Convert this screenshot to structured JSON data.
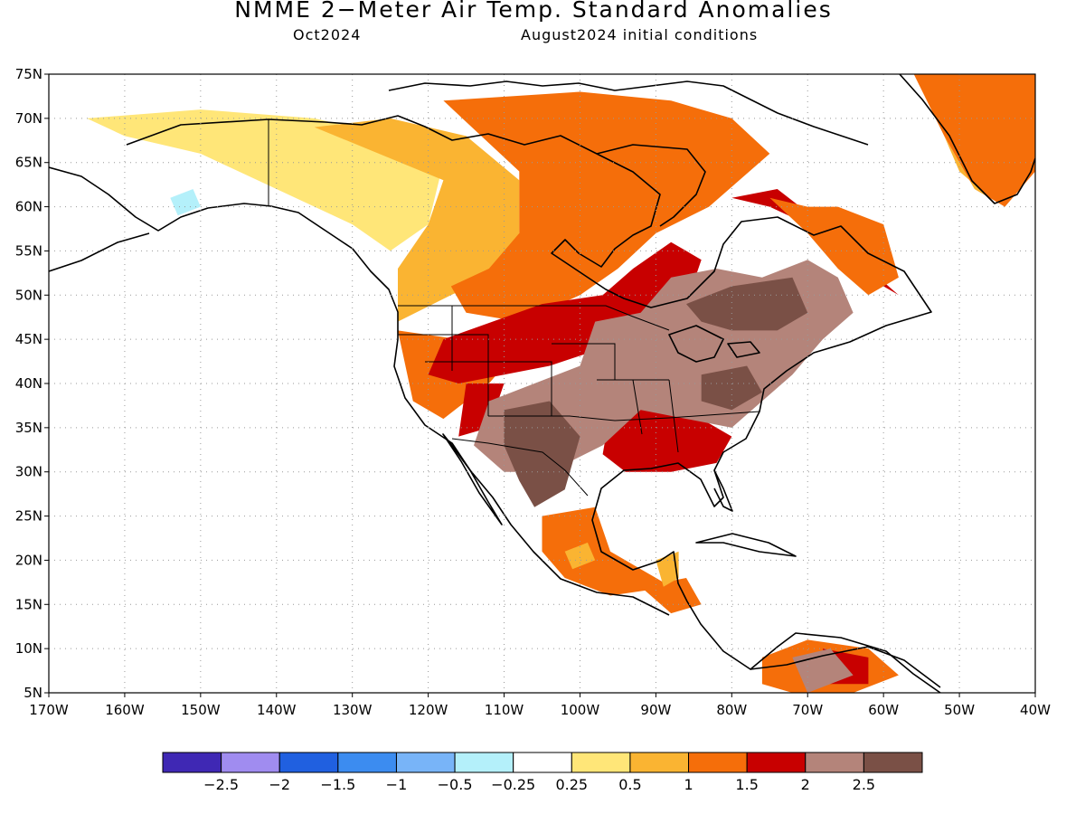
{
  "title": "NMME 2−Meter Air Temp. Standard Anomalies",
  "subtitle_left": "Oct2024",
  "subtitle_right": "August2024 initial conditions",
  "axes": {
    "lat_labels": [
      "75N",
      "70N",
      "65N",
      "60N",
      "55N",
      "50N",
      "45N",
      "40N",
      "35N",
      "30N",
      "25N",
      "20N",
      "15N",
      "10N",
      "5N"
    ],
    "lat_values": [
      75,
      70,
      65,
      60,
      55,
      50,
      45,
      40,
      35,
      30,
      25,
      20,
      15,
      10,
      5
    ],
    "lon_labels": [
      "170W",
      "160W",
      "150W",
      "140W",
      "130W",
      "120W",
      "110W",
      "100W",
      "90W",
      "80W",
      "70W",
      "60W",
      "50W",
      "40W"
    ],
    "lon_values": [
      -170,
      -160,
      -150,
      -140,
      -130,
      -120,
      -110,
      -100,
      -90,
      -80,
      -70,
      -60,
      -50,
      -40
    ],
    "lon_range": [
      -170,
      -40
    ],
    "lat_range": [
      5,
      75
    ],
    "grid": true
  },
  "colorbar": {
    "labels": [
      "−2.5",
      "−2",
      "−1.5",
      "−1",
      "−0.5",
      "−0.25",
      "0.25",
      "0.5",
      "1",
      "1.5",
      "2",
      "2.5"
    ],
    "colors": [
      "#3f28b4",
      "#a08cf0",
      "#2060e0",
      "#3c8cf0",
      "#78b4f8",
      "#b4f0fa",
      "#ffffff",
      "#ffe678",
      "#fab432",
      "#f56e0a",
      "#c80000",
      "#b4847a",
      "#7a5046"
    ]
  },
  "anomaly_regions": [
    {
      "level": "0.25",
      "color": "#ffe678",
      "polygon": [
        [
          -165,
          70
        ],
        [
          -150,
          71
        ],
        [
          -135,
          70
        ],
        [
          -125,
          68
        ],
        [
          -118,
          65
        ],
        [
          -120,
          58
        ],
        [
          -125,
          55
        ],
        [
          -130,
          58
        ],
        [
          -140,
          62
        ],
        [
          -150,
          66
        ],
        [
          -160,
          68
        ]
      ]
    },
    {
      "level": "0.5",
      "color": "#fab432",
      "polygon": [
        [
          -135,
          69
        ],
        [
          -125,
          70
        ],
        [
          -115,
          68
        ],
        [
          -108,
          63
        ],
        [
          -108,
          56
        ],
        [
          -112,
          52
        ],
        [
          -117,
          50
        ],
        [
          -124,
          47
        ],
        [
          -124,
          53
        ],
        [
          -120,
          58
        ],
        [
          -118,
          63
        ]
      ]
    },
    {
      "level": "1",
      "color": "#f56e0a",
      "polygon": [
        [
          -118,
          72
        ],
        [
          -100,
          73
        ],
        [
          -88,
          72
        ],
        [
          -80,
          70
        ],
        [
          -75,
          66
        ],
        [
          -83,
          60
        ],
        [
          -90,
          57
        ],
        [
          -95,
          53
        ],
        [
          -100,
          50
        ],
        [
          -108,
          47
        ],
        [
          -115,
          48
        ],
        [
          -117,
          51
        ],
        [
          -112,
          53
        ],
        [
          -108,
          57
        ],
        [
          -108,
          64
        ]
      ]
    },
    {
      "level": "1.5",
      "color": "#f56e0a",
      "polygon": [
        [
          -124,
          46
        ],
        [
          -116,
          45
        ],
        [
          -108,
          44
        ],
        [
          -112,
          40
        ],
        [
          -118,
          36
        ],
        [
          -122,
          38
        ]
      ]
    },
    {
      "level": "2",
      "color": "#c80000",
      "polygon": [
        [
          -118,
          45
        ],
        [
          -105,
          49
        ],
        [
          -97,
          50
        ],
        [
          -93,
          53
        ],
        [
          -88,
          56
        ],
        [
          -84,
          54
        ],
        [
          -86,
          49
        ],
        [
          -92,
          47
        ],
        [
          -97,
          44
        ],
        [
          -104,
          42
        ],
        [
          -110,
          41
        ],
        [
          -116,
          40
        ],
        [
          -120,
          41
        ]
      ]
    },
    {
      "level": "2",
      "color": "#c80000",
      "polygon": [
        [
          -80,
          61
        ],
        [
          -75,
          60
        ],
        [
          -70,
          58
        ],
        [
          -66,
          55
        ],
        [
          -62,
          52
        ],
        [
          -58,
          50
        ],
        [
          -62,
          53
        ],
        [
          -68,
          58
        ],
        [
          -74,
          62
        ]
      ]
    },
    {
      "level": "2",
      "color": "#c80000",
      "polygon": [
        [
          -96,
          37
        ],
        [
          -90,
          38
        ],
        [
          -84,
          36
        ],
        [
          -80,
          34
        ],
        [
          -82,
          31
        ],
        [
          -88,
          30
        ],
        [
          -94,
          30
        ],
        [
          -97,
          32
        ]
      ]
    },
    {
      "level": "2",
      "color": "#c80000",
      "polygon": [
        [
          -115,
          40
        ],
        [
          -110,
          40
        ],
        [
          -112,
          35
        ],
        [
          -116,
          34
        ]
      ]
    },
    {
      "level": "1.5",
      "color": "#f56e0a",
      "polygon": [
        [
          -75,
          61
        ],
        [
          -70,
          60
        ],
        [
          -66,
          60
        ],
        [
          -60,
          58
        ],
        [
          -58,
          52
        ],
        [
          -62,
          50
        ],
        [
          -66,
          53
        ],
        [
          -70,
          57
        ]
      ]
    },
    {
      "level": "2.5",
      "color": "#b4847a",
      "polygon": [
        [
          -98,
          47
        ],
        [
          -92,
          48
        ],
        [
          -88,
          52
        ],
        [
          -82,
          53
        ],
        [
          -76,
          52
        ],
        [
          -70,
          54
        ],
        [
          -66,
          52
        ],
        [
          -64,
          48
        ],
        [
          -68,
          45
        ],
        [
          -72,
          41
        ],
        [
          -76,
          38
        ],
        [
          -80,
          35
        ],
        [
          -86,
          36
        ],
        [
          -92,
          37
        ],
        [
          -97,
          33
        ],
        [
          -104,
          30
        ],
        [
          -110,
          30
        ],
        [
          -114,
          33
        ],
        [
          -112,
          38
        ],
        [
          -106,
          40
        ],
        [
          -100,
          42
        ]
      ]
    },
    {
      "level": "2.5",
      "color": "#7a5046",
      "polygon": [
        [
          -110,
          37
        ],
        [
          -104,
          38
        ],
        [
          -100,
          34
        ],
        [
          -102,
          28
        ],
        [
          -106,
          26
        ],
        [
          -108,
          29
        ],
        [
          -110,
          33
        ]
      ]
    },
    {
      "level": "2.5",
      "color": "#7a5046",
      "polygon": [
        [
          -86,
          49
        ],
        [
          -80,
          51
        ],
        [
          -72,
          52
        ],
        [
          -70,
          48
        ],
        [
          -74,
          46
        ],
        [
          -80,
          46
        ],
        [
          -84,
          47
        ]
      ]
    },
    {
      "level": "2.5",
      "color": "#7a5046",
      "polygon": [
        [
          -84,
          41
        ],
        [
          -78,
          42
        ],
        [
          -76,
          39
        ],
        [
          -80,
          37
        ],
        [
          -84,
          38
        ]
      ]
    },
    {
      "level": "1.5",
      "color": "#f56e0a",
      "polygon": [
        [
          -105,
          25
        ],
        [
          -98,
          26
        ],
        [
          -96,
          21
        ],
        [
          -92,
          19
        ],
        [
          -88,
          17
        ],
        [
          -96,
          16
        ],
        [
          -102,
          18
        ],
        [
          -105,
          21
        ]
      ]
    },
    {
      "level": "1",
      "color": "#fab432",
      "polygon": [
        [
          -102,
          21
        ],
        [
          -99,
          22
        ],
        [
          -98,
          20
        ],
        [
          -101,
          19
        ]
      ]
    },
    {
      "level": "1.5",
      "color": "#f56e0a",
      "polygon": [
        [
          -76,
          9
        ],
        [
          -70,
          11
        ],
        [
          -62,
          10
        ],
        [
          -58,
          7
        ],
        [
          -64,
          5
        ],
        [
          -72,
          5
        ],
        [
          -76,
          6
        ]
      ]
    },
    {
      "level": "2",
      "color": "#c80000",
      "polygon": [
        [
          -68,
          10
        ],
        [
          -62,
          9
        ],
        [
          -62,
          6
        ],
        [
          -67,
          6
        ]
      ]
    },
    {
      "level": "2.5",
      "color": "#b4847a",
      "polygon": [
        [
          -72,
          9
        ],
        [
          -67,
          10
        ],
        [
          -64,
          7
        ],
        [
          -70,
          5
        ]
      ]
    },
    {
      "level": "1.5",
      "color": "#f56e0a",
      "polygon": [
        [
          -92,
          17
        ],
        [
          -86,
          18
        ],
        [
          -84,
          15
        ],
        [
          -88,
          14
        ]
      ]
    },
    {
      "level": "1",
      "color": "#fab432",
      "polygon": [
        [
          -90,
          20
        ],
        [
          -87,
          21
        ],
        [
          -87,
          18
        ],
        [
          -89,
          17
        ]
      ]
    },
    {
      "level": "2",
      "color": "#c80000",
      "polygon": [
        [
          -50,
          72
        ],
        [
          -42,
          75
        ],
        [
          -40,
          74
        ],
        [
          -40,
          70
        ],
        [
          -46,
          69
        ]
      ]
    },
    {
      "level": "1.5",
      "color": "#f56e0a",
      "polygon": [
        [
          -56,
          75
        ],
        [
          -40,
          75
        ],
        [
          -40,
          64
        ],
        [
          -44,
          60
        ],
        [
          -48,
          62
        ],
        [
          -52,
          68
        ]
      ]
    },
    {
      "level": "0.5",
      "color": "#fab432",
      "polygon": [
        [
          -52,
          68
        ],
        [
          -48,
          62
        ],
        [
          -46,
          61
        ],
        [
          -50,
          64
        ]
      ]
    },
    {
      "level": "-0.5",
      "color": "#b4f0fa",
      "polygon": [
        [
          -154,
          61
        ],
        [
          -151,
          62
        ],
        [
          -150,
          60
        ],
        [
          -153,
          59
        ]
      ]
    }
  ]
}
